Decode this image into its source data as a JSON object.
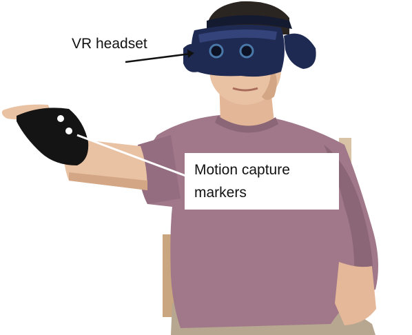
{
  "annotations": {
    "headset_label": "VR headset",
    "markers_label_line1": "Motion capture",
    "markers_label_line2": "markers"
  },
  "colors": {
    "shirt": "#a0788a",
    "shirt_shadow": "#8a6677",
    "skin": "#e9c2a4",
    "skin_shadow": "#d3a786",
    "hair": "#2b2522",
    "headset": "#1e2a52",
    "headset_highlight": "#34447a",
    "glove": "#141414",
    "marker": "#ffffff",
    "chair": "#c9a680",
    "pants": "#b7a690",
    "label_box": "#ffffff",
    "text": "#111111"
  }
}
